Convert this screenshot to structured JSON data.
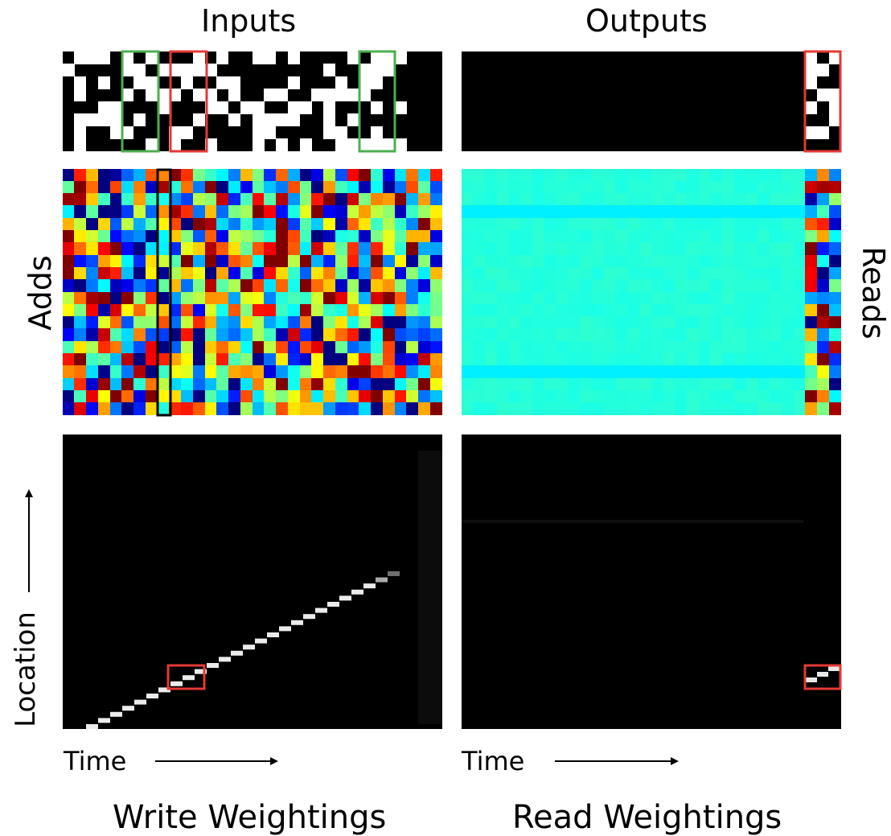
{
  "titles": {
    "inputs": "Inputs",
    "outputs": "Outputs",
    "adds": "Adds",
    "reads": "Reads",
    "location": "Location",
    "time_left": "Time",
    "time_right": "Time",
    "write_weightings": "Write Weightings",
    "read_weightings": "Read Weightings"
  },
  "colors": {
    "green_box": "#4caf50",
    "red_box": "#e53935",
    "black_box": "#000000",
    "background": "#ffffff"
  }
}
